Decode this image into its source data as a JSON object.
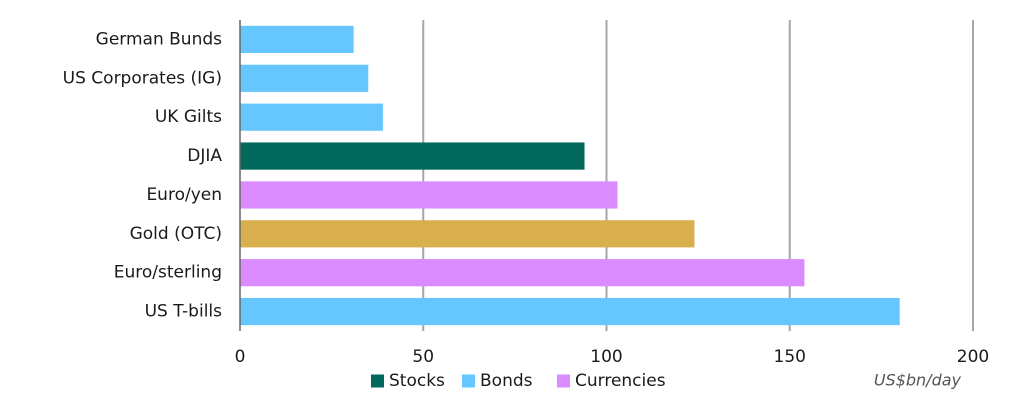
{
  "chart_data": {
    "type": "bar",
    "orientation": "horizontal",
    "categories": [
      "German Bunds",
      "US Corporates (IG)",
      "UK Gilts",
      "DJIA",
      "Euro/yen",
      "Gold (OTC)",
      "Euro/sterling",
      "US T-bills"
    ],
    "values": [
      31,
      35,
      39,
      94,
      103,
      124,
      154,
      180
    ],
    "groups": [
      "Bonds",
      "Bonds",
      "Bonds",
      "Stocks",
      "Currencies",
      "Gold",
      "Currencies",
      "Bonds"
    ],
    "xlim": [
      0,
      200
    ],
    "xticks": [
      0,
      50,
      100,
      150,
      200
    ],
    "xlabel": "US$bn/day",
    "grid": "vertical",
    "legend": {
      "placement": "bottom",
      "items": [
        {
          "name": "Stocks",
          "color": "#00695C"
        },
        {
          "name": "Bonds",
          "color": "#66C7FF"
        },
        {
          "name": "Currencies",
          "color": "#DA8BFF"
        }
      ]
    },
    "colors": {
      "Stocks": "#00695C",
      "Bonds": "#66C7FF",
      "Currencies": "#DA8BFF",
      "Gold": "#D9AF4E"
    }
  }
}
